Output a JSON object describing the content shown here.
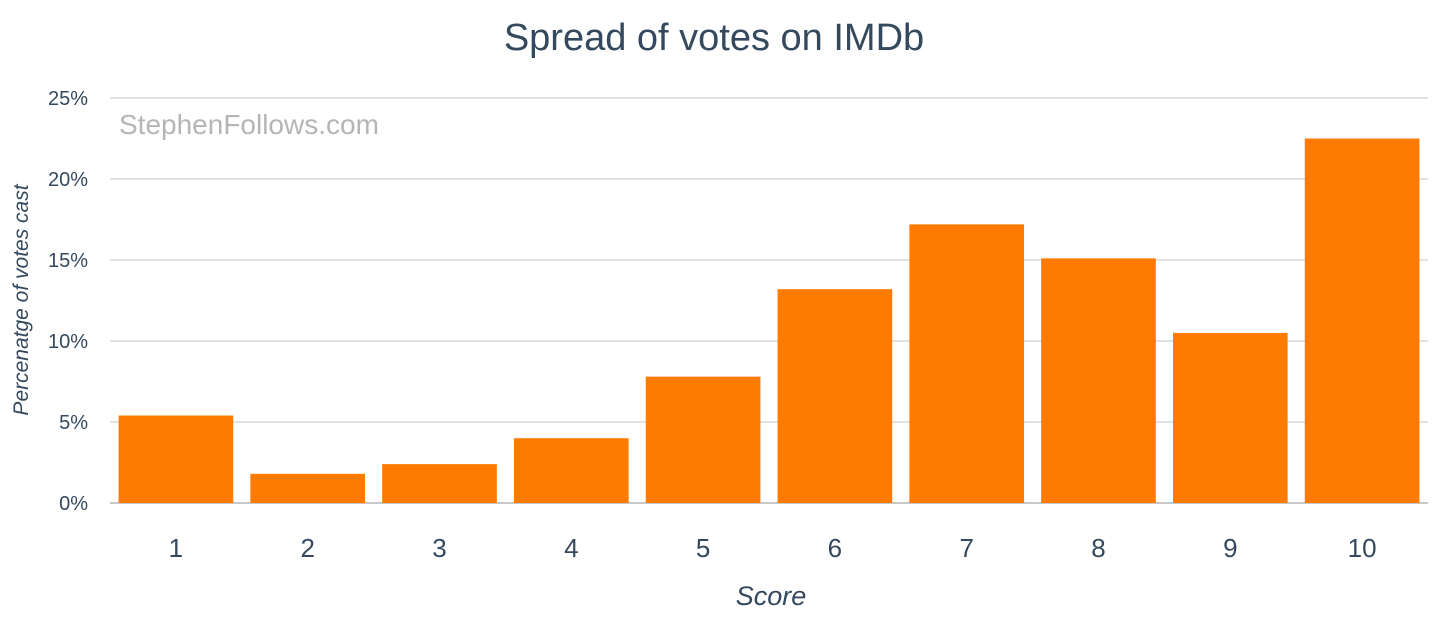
{
  "chart_data": {
    "type": "bar",
    "title": "Spread of votes on IMDb",
    "watermark": "StephenFollows.com",
    "xlabel": "Score",
    "ylabel": "Percenatge of votes cast",
    "categories": [
      "1",
      "2",
      "3",
      "4",
      "5",
      "6",
      "7",
      "8",
      "9",
      "10"
    ],
    "values": [
      5.4,
      1.8,
      2.4,
      4.0,
      7.8,
      13.2,
      17.2,
      15.1,
      10.5,
      22.5
    ],
    "value_unit": "%",
    "ylim": [
      0,
      25
    ],
    "yticks": [
      0,
      5,
      10,
      15,
      20,
      25
    ],
    "ytick_labels": [
      "0%",
      "5%",
      "10%",
      "15%",
      "20%",
      "25%"
    ],
    "grid": true,
    "legend": "none",
    "bar_color": "#ff7b00",
    "text_color": "#34495e",
    "grid_color": "#d9d9d9"
  }
}
